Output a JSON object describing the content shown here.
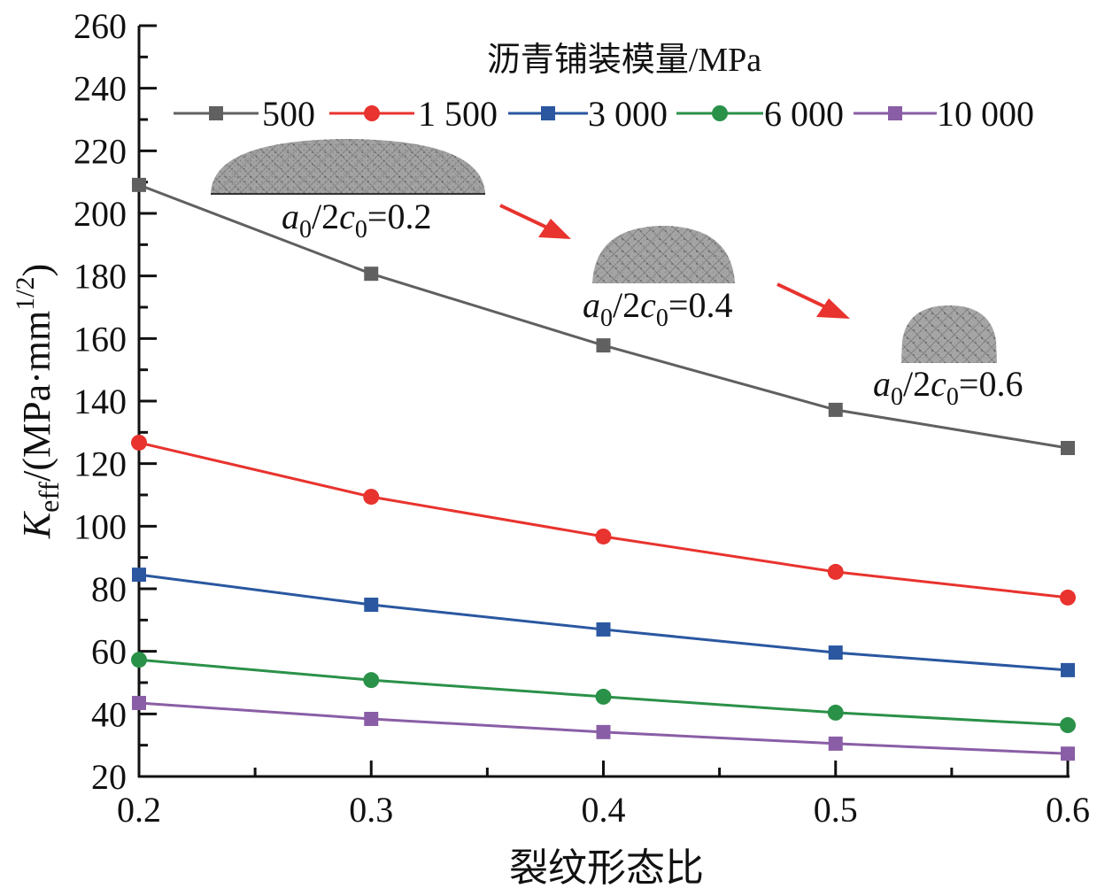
{
  "chart_data": {
    "type": "line",
    "title": "",
    "xlabel": "裂纹形态比",
    "ylabel": {
      "symbol": "K",
      "subscript": "eff",
      "units": "/(MPa·mm",
      "units_sup": "1/2",
      "units_close": ")"
    },
    "xlim": [
      0.2,
      0.6
    ],
    "ylim": [
      20,
      260
    ],
    "x": [
      0.2,
      0.3,
      0.4,
      0.5,
      0.6
    ],
    "x_ticks": [
      "0.2",
      "0.3",
      "0.4",
      "0.5",
      "0.6"
    ],
    "x_minor_ticks": [
      0.25,
      0.35,
      0.45,
      0.55
    ],
    "y_ticks": [
      "20",
      "40",
      "60",
      "80",
      "100",
      "120",
      "140",
      "160",
      "180",
      "200",
      "220",
      "240",
      "260"
    ],
    "y_tick_values": [
      20,
      40,
      60,
      80,
      100,
      120,
      140,
      160,
      180,
      200,
      220,
      240,
      260
    ],
    "grid": false,
    "legend": {
      "title": "沥青铺装模量/MPa",
      "placement": "top",
      "orientation": "horizontal"
    },
    "series": [
      {
        "name": "500",
        "color": "#606060",
        "marker": "square",
        "values": [
          209.1,
          180.7,
          157.8,
          137.2,
          125.0
        ]
      },
      {
        "name": "1 500",
        "color": "#e8332e",
        "marker": "circle",
        "values": [
          126.7,
          109.4,
          96.7,
          85.4,
          77.2
        ]
      },
      {
        "name": "3 000",
        "color": "#2a57a0",
        "marker": "square",
        "values": [
          84.5,
          74.9,
          67.0,
          59.6,
          54.0
        ]
      },
      {
        "name": "6 000",
        "color": "#2a9148",
        "marker": "circle",
        "values": [
          57.3,
          50.8,
          45.5,
          40.4,
          36.4
        ]
      },
      {
        "name": "10 000",
        "color": "#8a5ea6",
        "marker": "square",
        "values": [
          43.5,
          38.4,
          34.2,
          30.5,
          27.3
        ]
      }
    ],
    "annotations": [
      {
        "label_var": "a",
        "label_sub1": "0",
        "label_mid": "/2",
        "label_var2": "c",
        "label_sub2": "0",
        "label_val": "=0.2",
        "shape": "semi-ellipse crack mesh (flat)"
      },
      {
        "label_var": "a",
        "label_sub1": "0",
        "label_mid": "/2",
        "label_var2": "c",
        "label_sub2": "0",
        "label_val": "=0.4",
        "shape": "semi-ellipse crack mesh (medium)"
      },
      {
        "label_var": "a",
        "label_sub1": "0",
        "label_mid": "/2",
        "label_var2": "c",
        "label_sub2": "0",
        "label_val": "=0.6",
        "shape": "semi-ellipse crack mesh (tall)"
      }
    ],
    "arrow_color": "#e8332e"
  }
}
